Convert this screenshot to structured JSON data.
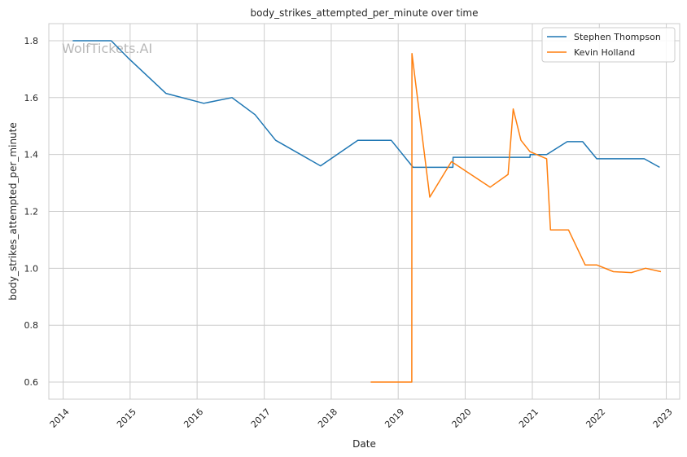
{
  "chart_data": {
    "type": "line",
    "title": "body_strikes_attempted_per_minute over time",
    "xlabel": "Date",
    "ylabel": "body_strikes_attempted_per_minute",
    "watermark": "WolfTickets.AI",
    "x_ticks": [
      "2014",
      "2015",
      "2016",
      "2017",
      "2018",
      "2019",
      "2020",
      "2021",
      "2022",
      "2023"
    ],
    "y_ticks": [
      "0.6",
      "0.8",
      "1.0",
      "1.2",
      "1.4",
      "1.6",
      "1.8"
    ],
    "xlim": [
      "2013-10-15",
      "2023-03-15"
    ],
    "ylim": [
      0.54,
      1.86
    ],
    "grid": true,
    "legend_position": "top-right",
    "series": [
      {
        "name": "Stephen Thompson",
        "color": "#1f77b4",
        "points": [
          [
            "2014-02-22",
            1.8
          ],
          [
            "2014-09-20",
            1.8
          ],
          [
            "2014-12-20",
            1.74
          ],
          [
            "2015-07-15",
            1.615
          ],
          [
            "2016-02-06",
            1.58
          ],
          [
            "2016-07-09",
            1.6
          ],
          [
            "2016-11-12",
            1.54
          ],
          [
            "2017-03-04",
            1.45
          ],
          [
            "2017-11-04",
            1.36
          ],
          [
            "2018-05-26",
            1.45
          ],
          [
            "2018-11-24",
            1.45
          ],
          [
            "2019-03-23",
            1.355
          ],
          [
            "2019-10-26",
            1.355
          ],
          [
            "2019-10-27",
            1.39
          ],
          [
            "2020-12-19",
            1.39
          ],
          [
            "2020-12-20",
            1.4
          ],
          [
            "2021-03-20",
            1.4
          ],
          [
            "2021-07-10",
            1.445
          ],
          [
            "2021-10-02",
            1.445
          ],
          [
            "2021-12-18",
            1.385
          ],
          [
            "2022-09-03",
            1.385
          ],
          [
            "2022-11-26",
            1.355
          ]
        ]
      },
      {
        "name": "Kevin Holland",
        "color": "#ff7f0e",
        "points": [
          [
            "2018-08-04",
            0.6
          ],
          [
            "2019-03-16",
            0.6
          ],
          [
            "2019-03-17",
            1.755
          ],
          [
            "2019-06-22",
            1.25
          ],
          [
            "2019-10-18",
            1.375
          ],
          [
            "2020-05-16",
            1.285
          ],
          [
            "2020-08-22",
            1.33
          ],
          [
            "2020-09-19",
            1.56
          ],
          [
            "2020-10-31",
            1.45
          ],
          [
            "2020-12-19",
            1.41
          ],
          [
            "2021-03-20",
            1.385
          ],
          [
            "2021-04-10",
            1.135
          ],
          [
            "2021-07-17",
            1.135
          ],
          [
            "2021-10-16",
            1.012
          ],
          [
            "2021-12-18",
            1.012
          ],
          [
            "2022-03-19",
            0.988
          ],
          [
            "2022-06-25",
            0.985
          ],
          [
            "2022-09-10",
            1.0
          ],
          [
            "2022-12-03",
            0.988
          ]
        ]
      }
    ]
  }
}
